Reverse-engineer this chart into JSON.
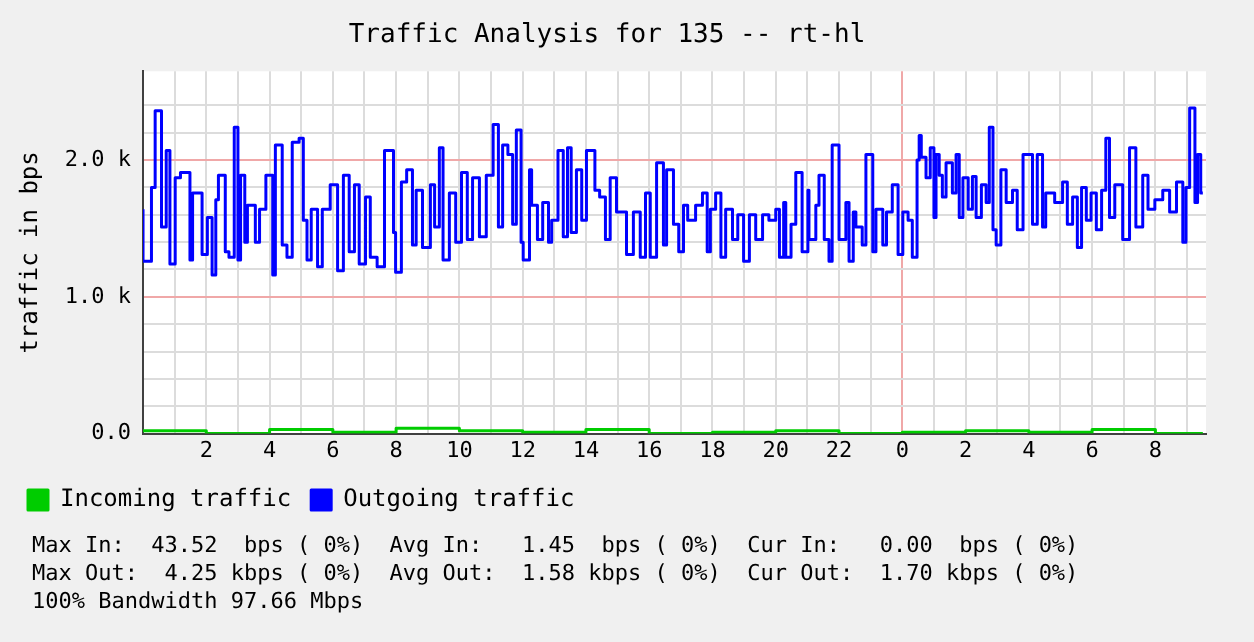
{
  "chart_data": {
    "type": "step",
    "title": "Traffic Analysis for 135 -- rt-hl",
    "ylabel": "traffic in bps",
    "xlim": [
      "--01-01T00:00",
      "--01-02T09:36"
    ],
    "xticks": [
      {
        "value": "--01-01T01:00",
        "label": null
      },
      {
        "value": "--01-01T02:00",
        "label": "2"
      },
      {
        "value": "--01-01T03:00",
        "label": null
      },
      {
        "value": "--01-01T04:00",
        "label": "4"
      },
      {
        "value": "--01-01T05:00",
        "label": null
      },
      {
        "value": "--01-01T06:00",
        "label": "6"
      },
      {
        "value": "--01-01T07:00",
        "label": null
      },
      {
        "value": "--01-01T08:00",
        "label": "8"
      },
      {
        "value": "--01-01T09:00",
        "label": null
      },
      {
        "value": "--01-01T10:00",
        "label": "10"
      },
      {
        "value": "--01-01T11:00",
        "label": null
      },
      {
        "value": "--01-01T12:00",
        "label": "12"
      },
      {
        "value": "--01-01T13:00",
        "label": null
      },
      {
        "value": "--01-01T14:00",
        "label": "14"
      },
      {
        "value": "--01-01T15:00",
        "label": null
      },
      {
        "value": "--01-01T16:00",
        "label": "16"
      },
      {
        "value": "--01-01T17:00",
        "label": null
      },
      {
        "value": "--01-01T18:00",
        "label": "18"
      },
      {
        "value": "--01-01T19:00",
        "label": null
      },
      {
        "value": "--01-01T20:00",
        "label": "20"
      },
      {
        "value": "--01-01T21:00",
        "label": null
      },
      {
        "value": "--01-01T22:00",
        "label": "22"
      },
      {
        "value": "--01-01T23:00",
        "label": null
      },
      {
        "value": "--01-02T00:00",
        "label": "0"
      },
      {
        "value": "--01-02T01:00",
        "label": null
      },
      {
        "value": "--01-02T02:00",
        "label": "2"
      },
      {
        "value": "--01-02T03:00",
        "label": null
      },
      {
        "value": "--01-02T04:00",
        "label": "4"
      },
      {
        "value": "--01-02T05:00",
        "label": null
      },
      {
        "value": "--01-02T06:00",
        "label": "6"
      },
      {
        "value": "--01-02T07:00",
        "label": null
      },
      {
        "value": "--01-02T08:00",
        "label": "8"
      },
      {
        "value": "--01-02T09:00",
        "label": null
      }
    ],
    "ylim": [
      0,
      2650
    ],
    "yticks": [
      {
        "value": 0,
        "label": "0.0"
      },
      {
        "value": 200,
        "label": null
      },
      {
        "value": 400,
        "label": null
      },
      {
        "value": 600,
        "label": null
      },
      {
        "value": 800,
        "label": null
      },
      {
        "value": 1000,
        "label": "1.0 k"
      },
      {
        "value": 1200,
        "label": null
      },
      {
        "value": 1400,
        "label": null
      },
      {
        "value": 1600,
        "label": null
      },
      {
        "value": 1800,
        "label": null
      },
      {
        "value": 2000,
        "label": "2.0 k"
      },
      {
        "value": 2200,
        "label": null
      },
      {
        "value": 2400,
        "label": null
      }
    ],
    "grid": true,
    "legend": "bottom",
    "series": [
      {
        "name": "Incoming traffic",
        "color": "#00cc00",
        "x": [
          "--01-01T00:00",
          "--01-01T02:00",
          "--01-01T04:00",
          "--01-01T06:00",
          "--01-01T08:00",
          "--01-01T10:00",
          "--01-01T12:00",
          "--01-01T14:00",
          "--01-01T16:00",
          "--01-01T18:00",
          "--01-01T20:00",
          "--01-01T22:00",
          "--01-02T00:00",
          "--01-02T02:00",
          "--01-02T04:00",
          "--01-02T06:00",
          "--01-02T08:00",
          "--01-02T09:30"
        ],
        "values": [
          10,
          20,
          0,
          30,
          10,
          40,
          20,
          10,
          30,
          0,
          10,
          20,
          0,
          10,
          20,
          10,
          30,
          0
        ]
      },
      {
        "name": "Outgoing traffic",
        "color": "#0000ff",
        "x": [
          "--01-01T00:00",
          "--01-01T00:16",
          "--01-01T00:23",
          "--01-01T00:35",
          "--01-01T00:44",
          "--01-01T00:51",
          "--01-01T01:01",
          "--01-01T01:11",
          "--01-01T01:29",
          "--01-01T01:34",
          "--01-01T01:52",
          "--01-01T02:02",
          "--01-01T02:11",
          "--01-01T02:18",
          "--01-01T02:23",
          "--01-01T02:36",
          "--01-01T02:43",
          "--01-01T02:53",
          "--01-01T03:00",
          "--01-01T03:05",
          "--01-01T03:13",
          "--01-01T03:18",
          "--01-01T03:33",
          "--01-01T03:41",
          "--01-01T03:53",
          "--01-01T04:06",
          "--01-01T04:11",
          "--01-01T04:24",
          "--01-01T04:33",
          "--01-01T04:43",
          "--01-01T04:56",
          "--01-01T05:04",
          "--01-01T05:11",
          "--01-01T05:19",
          "--01-01T05:31",
          "--01-01T05:40",
          "--01-01T05:55",
          "--01-01T06:09",
          "--01-01T06:20",
          "--01-01T06:31",
          "--01-01T06:41",
          "--01-01T06:50",
          "--01-01T07:02",
          "--01-01T07:11",
          "--01-01T07:24",
          "--01-01T07:38",
          "--01-01T07:55",
          "--01-01T07:59",
          "--01-01T08:10",
          "--01-01T08:20",
          "--01-01T08:31",
          "--01-01T08:38",
          "--01-01T08:50",
          "--01-01T09:05",
          "--01-01T09:13",
          "--01-01T09:22",
          "--01-01T09:29",
          "--01-01T09:41",
          "--01-01T09:53",
          "--01-01T10:04",
          "--01-01T10:15",
          "--01-01T10:25",
          "--01-01T10:38",
          "--01-01T10:51",
          "--01-01T11:04",
          "--01-01T11:14",
          "--01-01T11:22",
          "--01-01T11:32",
          "--01-01T11:41",
          "--01-01T11:48",
          "--01-01T11:57",
          "--01-01T12:01",
          "--01-01T12:13",
          "--01-01T12:17",
          "--01-01T12:28",
          "--01-01T12:38",
          "--01-01T12:49",
          "--01-01T12:55",
          "--01-01T13:07",
          "--01-01T13:17",
          "--01-01T13:25",
          "--01-01T13:32",
          "--01-01T13:42",
          "--01-01T13:52",
          "--01-01T14:01",
          "--01-01T14:17",
          "--01-01T14:26",
          "--01-01T14:37",
          "--01-01T14:46",
          "--01-01T14:58",
          "--01-01T15:17",
          "--01-01T15:30",
          "--01-01T15:43",
          "--01-01T15:53",
          "--01-01T16:02",
          "--01-01T16:14",
          "--01-01T16:27",
          "--01-01T16:33",
          "--01-01T16:46",
          "--01-01T16:56",
          "--01-01T17:05",
          "--01-01T17:13",
          "--01-01T17:28",
          "--01-01T17:41",
          "--01-01T17:50",
          "--01-01T17:56",
          "--01-01T18:06",
          "--01-01T18:16",
          "--01-01T18:25",
          "--01-01T18:38",
          "--01-01T18:48",
          "--01-01T18:59",
          "--01-01T19:10",
          "--01-01T19:22",
          "--01-01T19:35",
          "--01-01T19:47",
          "--01-01T20:00",
          "--01-01T20:07",
          "--01-01T20:15",
          "--01-01T20:19",
          "--01-01T20:29",
          "--01-01T20:38",
          "--01-01T20:50",
          "--01-01T21:01",
          "--01-01T21:03",
          "--01-01T21:16",
          "--01-01T21:22",
          "--01-01T21:32",
          "--01-01T21:41",
          "--01-01T21:47",
          "--01-01T22:00",
          "--01-01T22:13",
          "--01-01T22:19",
          "--01-01T22:27",
          "--01-01T22:32",
          "--01-01T22:44",
          "--01-01T22:51",
          "--01-01T23:04",
          "--01-01T23:10",
          "--01-01T23:23",
          "--01-01T23:30",
          "--01-01T23:41",
          "--01-01T23:52",
          "--01-02T00:01",
          "--01-02T00:11",
          "--01-02T00:19",
          "--01-02T00:28",
          "--01-02T00:32",
          "--01-02T00:36",
          "--01-02T00:45",
          "--01-02T00:53",
          "--01-02T01:00",
          "--01-02T01:04",
          "--01-02T01:10",
          "--01-02T01:16",
          "--01-02T01:23",
          "--01-02T01:35",
          "--01-02T01:42",
          "--01-02T01:48",
          "--01-02T01:55",
          "--01-02T02:05",
          "--01-02T02:13",
          "--01-02T02:20",
          "--01-02T02:30",
          "--01-02T02:39",
          "--01-02T02:45",
          "--01-02T02:52",
          "--01-02T02:58",
          "--01-02T03:07",
          "--01-02T03:17",
          "--01-02T03:29",
          "--01-02T03:38",
          "--01-02T03:49",
          "--01-02T04:07",
          "--01-02T04:16",
          "--01-02T04:26",
          "--01-02T04:32",
          "--01-02T04:49",
          "--01-02T05:04",
          "--01-02T05:13",
          "--01-02T05:23",
          "--01-02T05:32",
          "--01-02T05:40",
          "--01-02T05:49",
          "--01-02T05:58",
          "--01-02T06:08",
          "--01-02T06:18",
          "--01-02T06:26",
          "--01-02T06:33",
          "--01-02T06:43",
          "--01-02T06:58",
          "--01-02T07:11",
          "--01-02T07:23",
          "--01-02T07:36",
          "--01-02T07:46",
          "--01-02T07:59",
          "--01-02T08:14",
          "--01-02T08:27",
          "--01-02T08:40",
          "--01-02T08:52",
          "--01-02T08:58",
          "--01-02T09:05",
          "--01-02T09:15",
          "--01-02T09:20",
          "--01-02T09:26",
          "--01-02T09:30"
        ],
        "values": [
          1640,
          1260,
          1800,
          2360,
          1510,
          2070,
          1240,
          1870,
          1910,
          1270,
          1760,
          1310,
          1580,
          1160,
          1710,
          1890,
          1330,
          1290,
          2240,
          1270,
          1890,
          1400,
          1670,
          1400,
          1640,
          1890,
          1160,
          2110,
          1380,
          1290,
          2130,
          2160,
          1560,
          1270,
          1640,
          1220,
          1640,
          1820,
          1190,
          1890,
          1330,
          1820,
          1240,
          1730,
          1290,
          1220,
          2070,
          1470,
          1180,
          1840,
          1930,
          1380,
          1780,
          1360,
          1820,
          1510,
          2090,
          1270,
          1760,
          1400,
          1910,
          1420,
          1870,
          1440,
          1890,
          2260,
          1510,
          2110,
          2040,
          1530,
          2220,
          1400,
          1270,
          1930,
          1670,
          1420,
          1690,
          1400,
          1560,
          2070,
          1440,
          2090,
          1470,
          1930,
          1560,
          2070,
          1780,
          1730,
          1420,
          1870,
          1620,
          1310,
          1620,
          1290,
          1760,
          1290,
          1980,
          1380,
          1930,
          1530,
          1330,
          1670,
          1560,
          1670,
          1760,
          1330,
          1640,
          1760,
          1290,
          1640,
          1420,
          1600,
          1260,
          1600,
          1420,
          1600,
          1560,
          1640,
          1290,
          1690,
          1290,
          1530,
          1910,
          1330,
          1780,
          1420,
          1670,
          1890,
          1420,
          1260,
          2110,
          1420,
          1690,
          1260,
          1620,
          1510,
          1380,
          2040,
          1330,
          1640,
          1380,
          1620,
          1820,
          1310,
          1620,
          1560,
          1290,
          2000,
          2180,
          2020,
          1870,
          2090,
          1580,
          2040,
          1890,
          1730,
          1980,
          1760,
          2040,
          1580,
          1870,
          1640,
          1880,
          1580,
          1820,
          1690,
          2240,
          1490,
          1380,
          1930,
          1690,
          1780,
          1490,
          2040,
          1530,
          2040,
          1510,
          1760,
          1690,
          1840,
          1530,
          1730,
          1360,
          1800,
          1560,
          1760,
          1490,
          1780,
          2160,
          1580,
          1820,
          1420,
          2090,
          1510,
          1890,
          1640,
          1710,
          1780,
          1620,
          1840,
          1400,
          1800,
          2380,
          1690,
          2040,
          1760
        ]
      }
    ],
    "annotations": [
      "Max In:  43.52  bps ( 0%)  Avg In:   1.45  bps ( 0%)  Cur In:   0.00  bps ( 0%)",
      "Max Out:  4.25 kbps ( 0%)  Avg Out:  1.58 kbps ( 0%)  Cur Out:  1.70 kbps ( 0%)",
      "100% Bandwidth 97.66 Mbps"
    ]
  }
}
